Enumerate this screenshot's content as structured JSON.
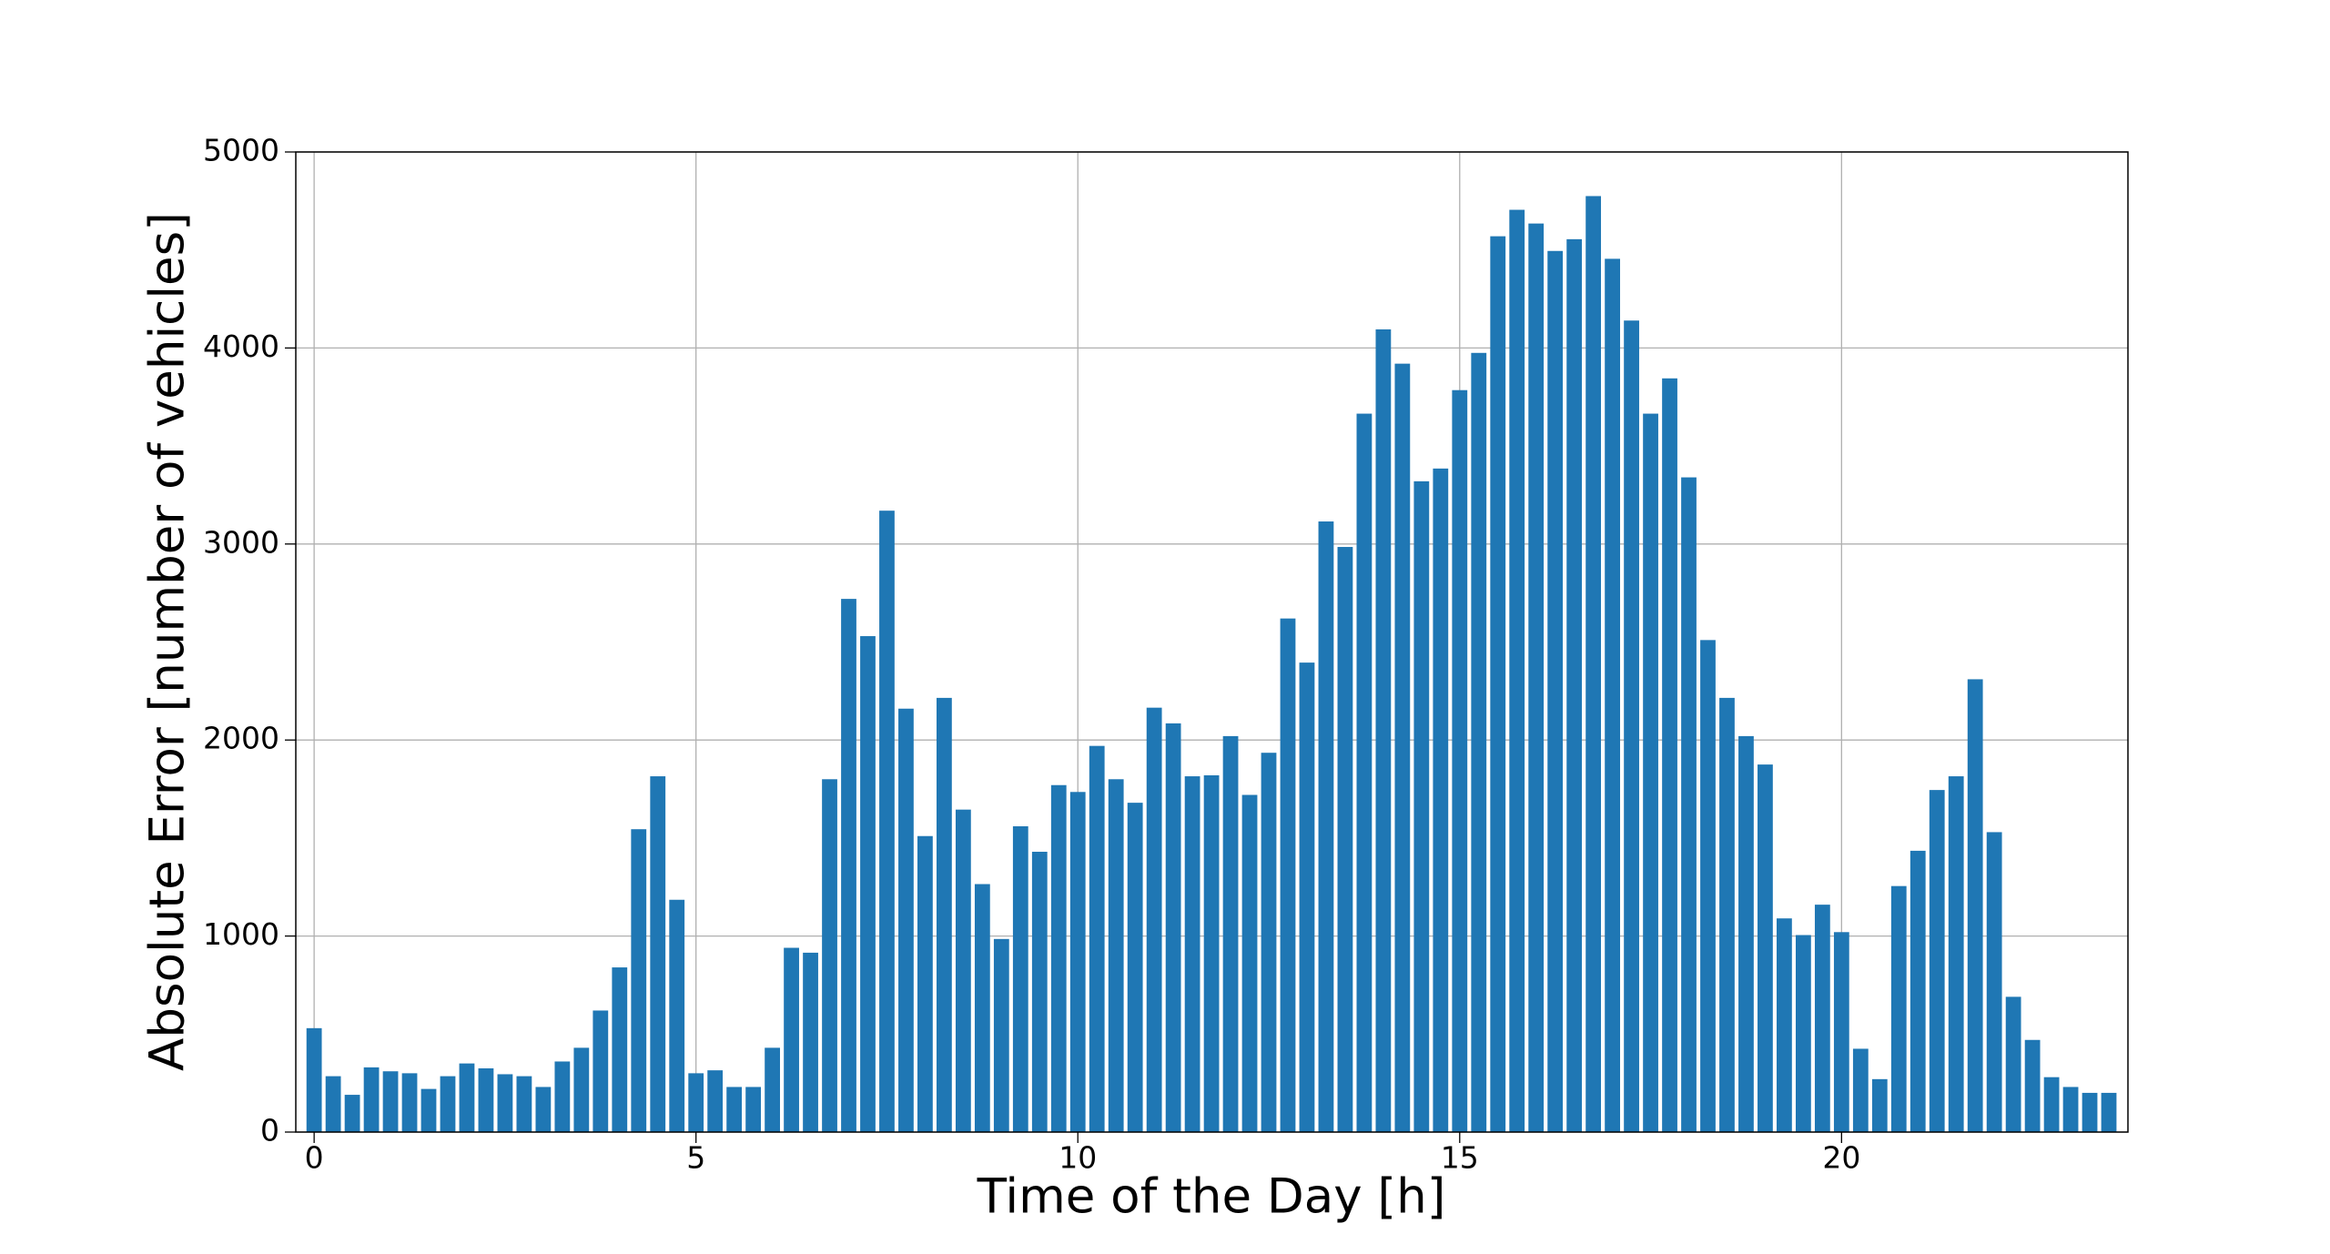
{
  "chart_data": {
    "type": "bar",
    "x_label": "Time of the Day [h]",
    "y_label": "Absolute Error [number of vehicles]",
    "x": [
      0,
      0.25,
      0.5,
      0.75,
      1,
      1.25,
      1.5,
      1.75,
      2,
      2.25,
      2.5,
      2.75,
      3,
      3.25,
      3.5,
      3.75,
      4,
      4.25,
      4.5,
      4.75,
      5,
      5.25,
      5.5,
      5.75,
      6,
      6.25,
      6.5,
      6.75,
      7,
      7.25,
      7.5,
      7.75,
      8,
      8.25,
      8.5,
      8.75,
      9,
      9.25,
      9.5,
      9.75,
      10,
      10.25,
      10.5,
      10.75,
      11,
      11.25,
      11.5,
      11.75,
      12,
      12.25,
      12.5,
      12.75,
      13,
      13.25,
      13.5,
      13.75,
      14,
      14.25,
      14.5,
      14.75,
      15,
      15.25,
      15.5,
      15.75,
      16,
      16.25,
      16.5,
      16.75,
      17,
      17.25,
      17.5,
      17.75,
      18,
      18.25,
      18.5,
      18.75,
      19,
      19.25,
      19.5,
      19.75,
      20,
      20.25,
      20.5,
      20.75,
      21,
      21.25,
      21.5,
      21.75,
      22,
      22.25,
      22.5,
      22.75,
      23,
      23.25,
      23.5
    ],
    "values": [
      530,
      285,
      190,
      330,
      310,
      300,
      220,
      285,
      350,
      325,
      295,
      285,
      230,
      360,
      430,
      620,
      840,
      1545,
      1815,
      1185,
      300,
      315,
      230,
      230,
      430,
      940,
      915,
      1800,
      2720,
      2530,
      3170,
      2160,
      1510,
      2215,
      1645,
      1265,
      985,
      1560,
      1430,
      1770,
      1735,
      1970,
      1800,
      1680,
      2165,
      2085,
      1815,
      1820,
      2020,
      1720,
      1935,
      2620,
      2395,
      3115,
      2985,
      3665,
      4095,
      3920,
      3320,
      3385,
      3785,
      3975,
      4570,
      4705,
      4635,
      4495,
      4555,
      4775,
      4455,
      4140,
      3665,
      3845,
      3340,
      2510,
      2215,
      2020,
      1875,
      1090,
      1005,
      1160,
      1020,
      425,
      270,
      1255,
      1435,
      1745,
      1815,
      2310,
      1530,
      690,
      470,
      280,
      230,
      200,
      200
    ],
    "color": "#1f77b4",
    "xlim": [
      -0.24,
      23.75
    ],
    "xticks": [
      0,
      5,
      10,
      15,
      20
    ],
    "ylim": [
      0,
      5000
    ],
    "yticks": [
      0,
      1000,
      2000,
      3000,
      4000,
      5000
    ],
    "grid": true
  }
}
